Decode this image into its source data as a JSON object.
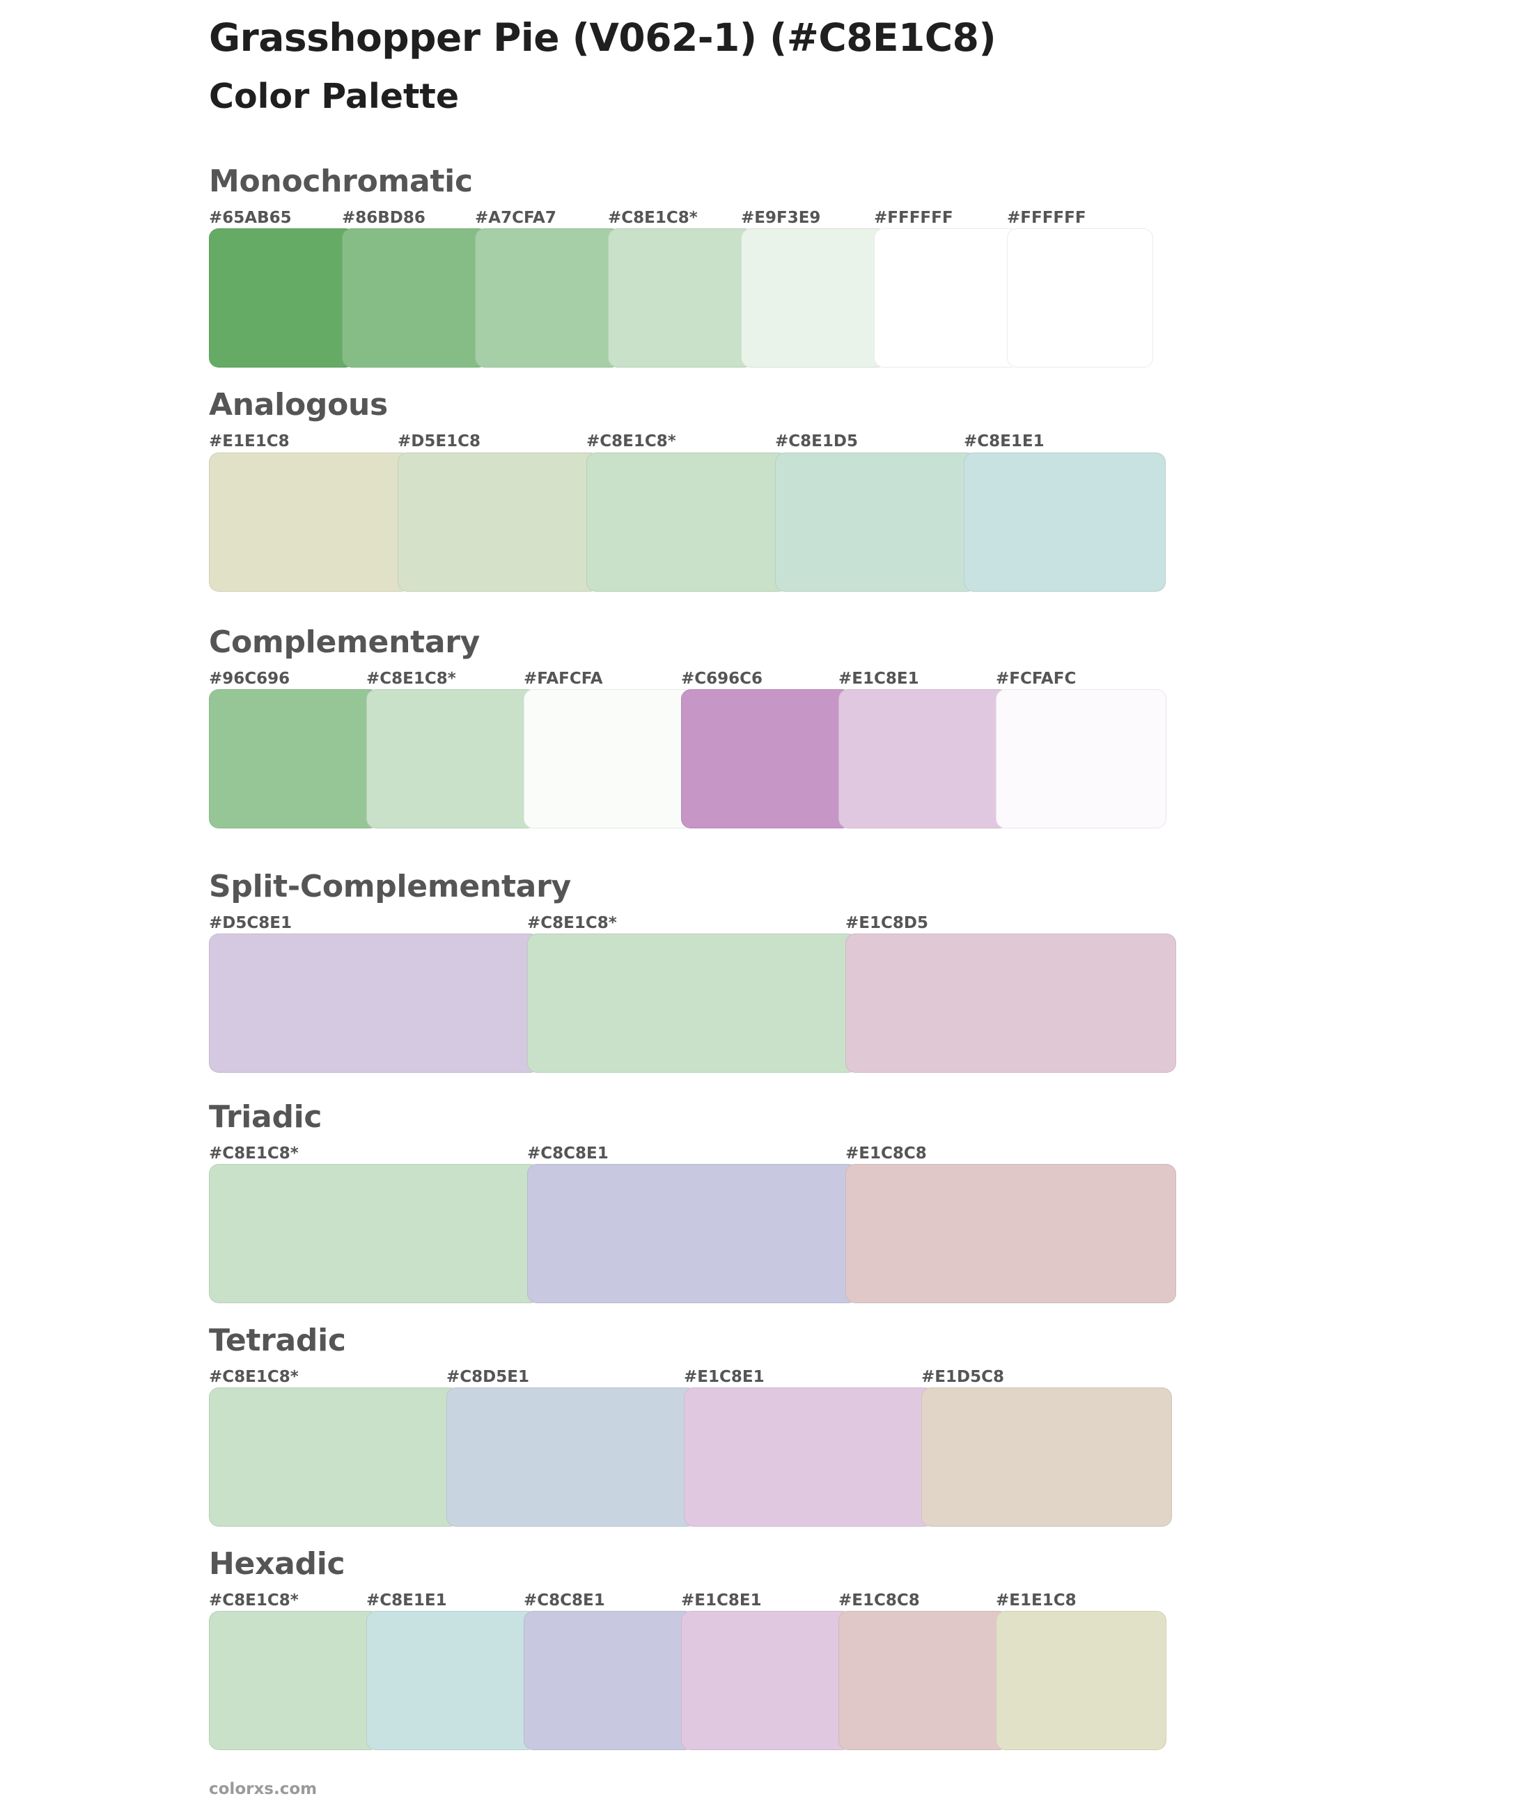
{
  "page": {
    "title": "Grasshopper Pie (V062-1) (#C8E1C8)",
    "subtitle": "Color Palette",
    "footer": "colorxs.com"
  },
  "sections": [
    {
      "name": "Monochromatic",
      "swatches": [
        {
          "label": "#65AB65",
          "color": "#65AB65"
        },
        {
          "label": "#86BD86",
          "color": "#86BD86"
        },
        {
          "label": "#A7CFA7",
          "color": "#A7CFA7"
        },
        {
          "label": "#C8E1C8*",
          "color": "#C8E1C8"
        },
        {
          "label": "#E9F3E9",
          "color": "#E9F3E9"
        },
        {
          "label": "#FFFFFF",
          "color": "#FFFFFF"
        },
        {
          "label": "#FFFFFF",
          "color": "#FFFFFF"
        }
      ]
    },
    {
      "name": "Analogous",
      "swatches": [
        {
          "label": "#E1E1C8",
          "color": "#E1E1C8"
        },
        {
          "label": "#D5E1C8",
          "color": "#D5E1C8"
        },
        {
          "label": "#C8E1C8*",
          "color": "#C8E1C8"
        },
        {
          "label": "#C8E1D5",
          "color": "#C8E1D5"
        },
        {
          "label": "#C8E1E1",
          "color": "#C8E1E1"
        }
      ]
    },
    {
      "name": "Complementary",
      "swatches": [
        {
          "label": "#96C696",
          "color": "#96C696"
        },
        {
          "label": "#C8E1C8*",
          "color": "#C8E1C8"
        },
        {
          "label": "#FAFCFA",
          "color": "#FAFCFA"
        },
        {
          "label": "#C696C6",
          "color": "#C696C6"
        },
        {
          "label": "#E1C8E1",
          "color": "#E1C8E1"
        },
        {
          "label": "#FCFAFC",
          "color": "#FCFAFC"
        }
      ]
    },
    {
      "name": "Split-Complementary",
      "swatches": [
        {
          "label": "#D5C8E1",
          "color": "#D5C8E1"
        },
        {
          "label": "#C8E1C8*",
          "color": "#C8E1C8"
        },
        {
          "label": "#E1C8D5",
          "color": "#E1C8D5"
        }
      ]
    },
    {
      "name": "Triadic",
      "swatches": [
        {
          "label": "#C8E1C8*",
          "color": "#C8E1C8"
        },
        {
          "label": "#C8C8E1",
          "color": "#C8C8E1"
        },
        {
          "label": "#E1C8C8",
          "color": "#E1C8C8"
        }
      ]
    },
    {
      "name": "Tetradic",
      "swatches": [
        {
          "label": "#C8E1C8*",
          "color": "#C8E1C8"
        },
        {
          "label": "#C8D5E1",
          "color": "#C8D5E1"
        },
        {
          "label": "#E1C8E1",
          "color": "#E1C8E1"
        },
        {
          "label": "#E1D5C8",
          "color": "#E1D5C8"
        }
      ]
    },
    {
      "name": "Hexadic",
      "swatches": [
        {
          "label": "#C8E1C8*",
          "color": "#C8E1C8"
        },
        {
          "label": "#C8E1E1",
          "color": "#C8E1E1"
        },
        {
          "label": "#C8C8E1",
          "color": "#C8C8E1"
        },
        {
          "label": "#E1C8E1",
          "color": "#E1C8E1"
        },
        {
          "label": "#E1C8C8",
          "color": "#E1C8C8"
        },
        {
          "label": "#E1E1C8",
          "color": "#E1E1C8"
        }
      ]
    }
  ]
}
